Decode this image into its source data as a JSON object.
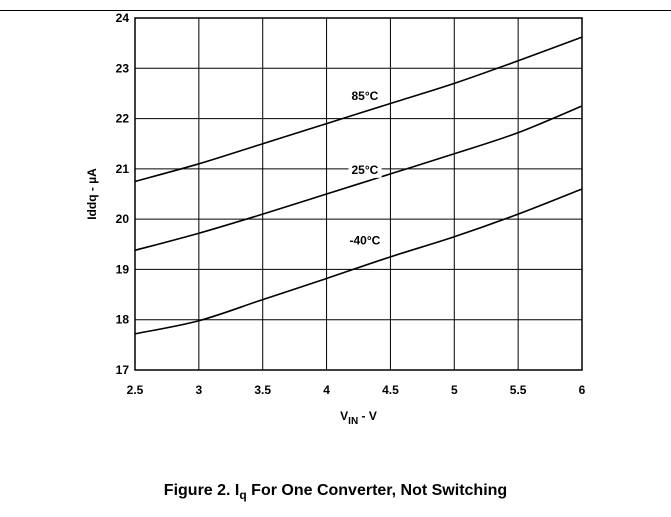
{
  "chart_data": {
    "type": "line",
    "title": "",
    "xlabel": {
      "main": "V",
      "sub": "IN",
      "suffix": " - V"
    },
    "ylabel": "Iddq - µA",
    "xlim": [
      2.5,
      6
    ],
    "ylim": [
      17,
      24
    ],
    "x_ticks": [
      "2.5",
      "3",
      "3.5",
      "4",
      "4.5",
      "5",
      "5.5",
      "6"
    ],
    "y_ticks": [
      "17",
      "18",
      "19",
      "20",
      "21",
      "22",
      "23",
      "24"
    ],
    "grid": true,
    "series": [
      {
        "name": "85°C",
        "x": [
          2.5,
          3,
          3.5,
          4,
          4.5,
          5,
          5.5,
          6
        ],
        "y": [
          20.75,
          21.1,
          21.5,
          21.9,
          22.3,
          22.7,
          23.15,
          23.62
        ]
      },
      {
        "name": "25°C",
        "x": [
          2.5,
          3,
          3.5,
          4,
          4.5,
          5,
          5.5,
          6
        ],
        "y": [
          19.38,
          19.72,
          20.1,
          20.5,
          20.9,
          21.3,
          21.72,
          22.25
        ]
      },
      {
        "name": "-40°C",
        "x": [
          2.5,
          3,
          3.5,
          4,
          4.5,
          5,
          5.5,
          6
        ],
        "y": [
          17.72,
          17.98,
          18.4,
          18.82,
          19.25,
          19.65,
          20.1,
          20.6
        ]
      }
    ],
    "series_label_anchor": [
      {
        "x": 4.3,
        "y": 22.45
      },
      {
        "x": 4.3,
        "y": 20.98
      },
      {
        "x": 4.3,
        "y": 19.58
      }
    ]
  },
  "caption": {
    "prefix": "Figure 2. I",
    "sub": "q",
    "suffix": " For One Converter, Not Switching"
  }
}
